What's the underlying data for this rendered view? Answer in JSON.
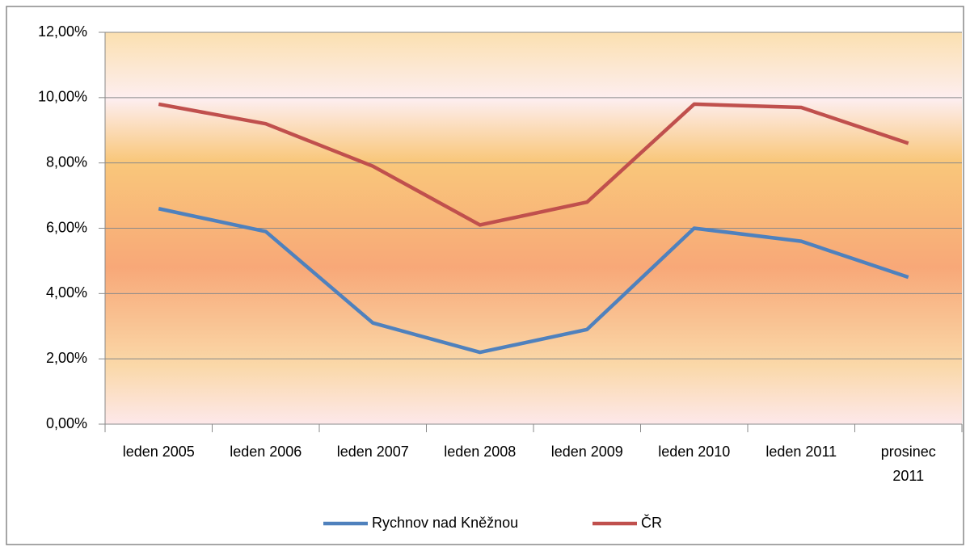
{
  "chart_data": {
    "type": "line",
    "categories": [
      "leden 2005",
      "leden 2006",
      "leden 2007",
      "leden 2008",
      "leden 2009",
      "leden 2010",
      "leden 2011",
      "prosinec 2011"
    ],
    "series": [
      {
        "name": "Rychnov nad Kněžnou",
        "color": "#4f81bd",
        "values": [
          6.6,
          5.9,
          3.1,
          2.2,
          2.9,
          6.0,
          5.6,
          4.5
        ]
      },
      {
        "name": "ČR",
        "color": "#c0504d",
        "values": [
          9.8,
          9.2,
          7.9,
          6.1,
          6.8,
          9.8,
          9.7,
          8.6
        ]
      }
    ],
    "ylim": [
      0,
      12
    ],
    "yticks": [
      {
        "value": 0,
        "label": "0,00%"
      },
      {
        "value": 2,
        "label": "2,00%"
      },
      {
        "value": 4,
        "label": "4,00%"
      },
      {
        "value": 6,
        "label": "6,00%"
      },
      {
        "value": 8,
        "label": "8,00%"
      },
      {
        "value": 10,
        "label": "10,00%"
      },
      {
        "value": 12,
        "label": "12,00%"
      }
    ],
    "grid": true,
    "legend": "bottom"
  }
}
